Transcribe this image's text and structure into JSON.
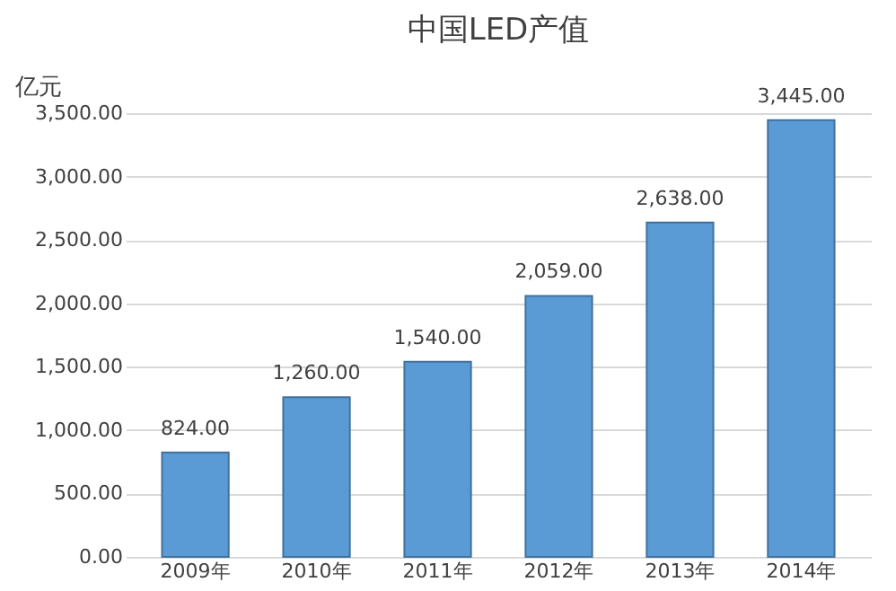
{
  "chart_data": {
    "type": "bar",
    "title": "中国LED产值",
    "ylabel": "亿元",
    "categories": [
      "2009年",
      "2010年",
      "2011年",
      "2012年",
      "2013年",
      "2014年"
    ],
    "values": [
      824,
      1260,
      1540,
      2059,
      2638,
      3445
    ],
    "value_labels": [
      "824.00",
      "1,260.00",
      "1,540.00",
      "2,059.00",
      "2,638.00",
      "3,445.00"
    ],
    "color": "#5b9bd5",
    "ylim": [
      0,
      3500
    ],
    "yticks": [
      {
        "value": 0,
        "label": "0.00"
      },
      {
        "value": 500,
        "label": "500.00"
      },
      {
        "value": 1000,
        "label": "1,000.00"
      },
      {
        "value": 1500,
        "label": "1,500.00"
      },
      {
        "value": 2000,
        "label": "2,000.00"
      },
      {
        "value": 2500,
        "label": "2,500.00"
      },
      {
        "value": 3000,
        "label": "3,000.00"
      },
      {
        "value": 3500,
        "label": "3,500.00"
      }
    ],
    "grid": "y"
  }
}
